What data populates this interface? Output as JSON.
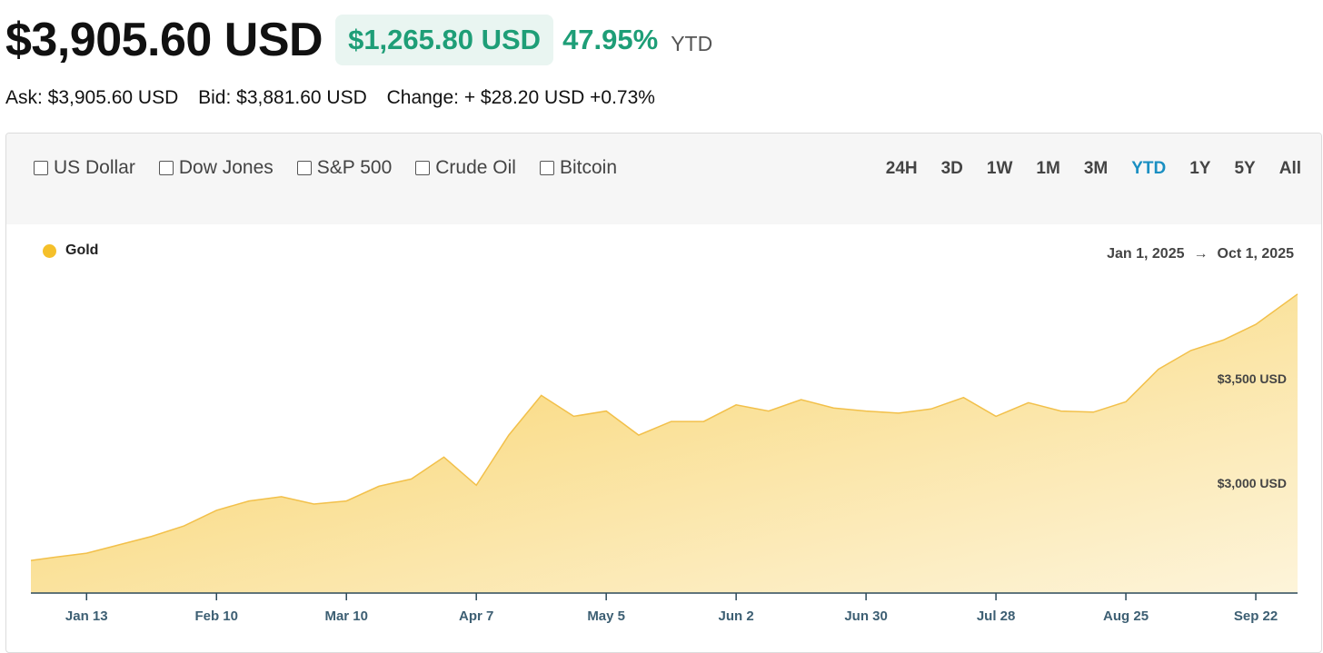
{
  "header": {
    "price": "$3,905.60 USD",
    "change_amount": "$1,265.80 USD",
    "change_percent": "47.95%",
    "period": "YTD"
  },
  "quote": {
    "ask": "Ask: $3,905.60 USD",
    "bid": "Bid: $3,881.60 USD",
    "change": "Change: + $28.20 USD +0.73%"
  },
  "compare": [
    "US Dollar",
    "Dow Jones",
    "S&P 500",
    "Crude Oil",
    "Bitcoin"
  ],
  "ranges": [
    "24H",
    "3D",
    "1W",
    "1M",
    "3M",
    "YTD",
    "1Y",
    "5Y",
    "All"
  ],
  "active_range": "YTD",
  "colors": {
    "accent_green": "#1e9e77",
    "active_blue": "#1a8fc2",
    "series": "#f5c02a"
  },
  "chart_data": {
    "type": "area",
    "series": [
      {
        "name": "Gold",
        "color": "#f5c02a",
        "points": [
          [
            "2025-01-01",
            2630
          ],
          [
            "2025-01-06",
            2645
          ],
          [
            "2025-01-13",
            2665
          ],
          [
            "2025-01-20",
            2705
          ],
          [
            "2025-01-27",
            2745
          ],
          [
            "2025-02-03",
            2795
          ],
          [
            "2025-02-10",
            2870
          ],
          [
            "2025-02-17",
            2915
          ],
          [
            "2025-02-24",
            2935
          ],
          [
            "2025-03-03",
            2900
          ],
          [
            "2025-03-10",
            2915
          ],
          [
            "2025-03-17",
            2985
          ],
          [
            "2025-03-24",
            3020
          ],
          [
            "2025-03-31",
            3125
          ],
          [
            "2025-04-07",
            2990
          ],
          [
            "2025-04-14",
            3230
          ],
          [
            "2025-04-21",
            3420
          ],
          [
            "2025-04-28",
            3320
          ],
          [
            "2025-05-05",
            3345
          ],
          [
            "2025-05-12",
            3230
          ],
          [
            "2025-05-19",
            3295
          ],
          [
            "2025-05-26",
            3295
          ],
          [
            "2025-06-02",
            3375
          ],
          [
            "2025-06-09",
            3345
          ],
          [
            "2025-06-16",
            3400
          ],
          [
            "2025-06-23",
            3360
          ],
          [
            "2025-06-30",
            3345
          ],
          [
            "2025-07-07",
            3335
          ],
          [
            "2025-07-14",
            3355
          ],
          [
            "2025-07-21",
            3410
          ],
          [
            "2025-07-28",
            3320
          ],
          [
            "2025-08-04",
            3385
          ],
          [
            "2025-08-11",
            3345
          ],
          [
            "2025-08-18",
            3340
          ],
          [
            "2025-08-25",
            3390
          ],
          [
            "2025-09-01",
            3545
          ],
          [
            "2025-09-08",
            3635
          ],
          [
            "2025-09-15",
            3685
          ],
          [
            "2025-09-22",
            3760
          ],
          [
            "2025-10-01",
            3905
          ]
        ]
      }
    ],
    "x_tick_labels": [
      "Jan 13",
      "Feb 10",
      "Mar 10",
      "Apr 7",
      "May 5",
      "Jun 2",
      "Jun 30",
      "Jul 28",
      "Aug 25",
      "Sep 22"
    ],
    "x_tick_dates": [
      "2025-01-13",
      "2025-02-10",
      "2025-03-10",
      "2025-04-07",
      "2025-05-05",
      "2025-06-02",
      "2025-06-30",
      "2025-07-28",
      "2025-08-25",
      "2025-09-22"
    ],
    "x_range": [
      "2025-01-01",
      "2025-10-01"
    ],
    "y_tick_values": [
      3000,
      3500
    ],
    "y_tick_labels": [
      "$3,000 USD",
      "$3,500 USD"
    ],
    "date_range": {
      "start": "Jan 1, 2025",
      "arrow": "→",
      "end": "Oct 1, 2025"
    },
    "legend": "top-left",
    "grid": false
  }
}
